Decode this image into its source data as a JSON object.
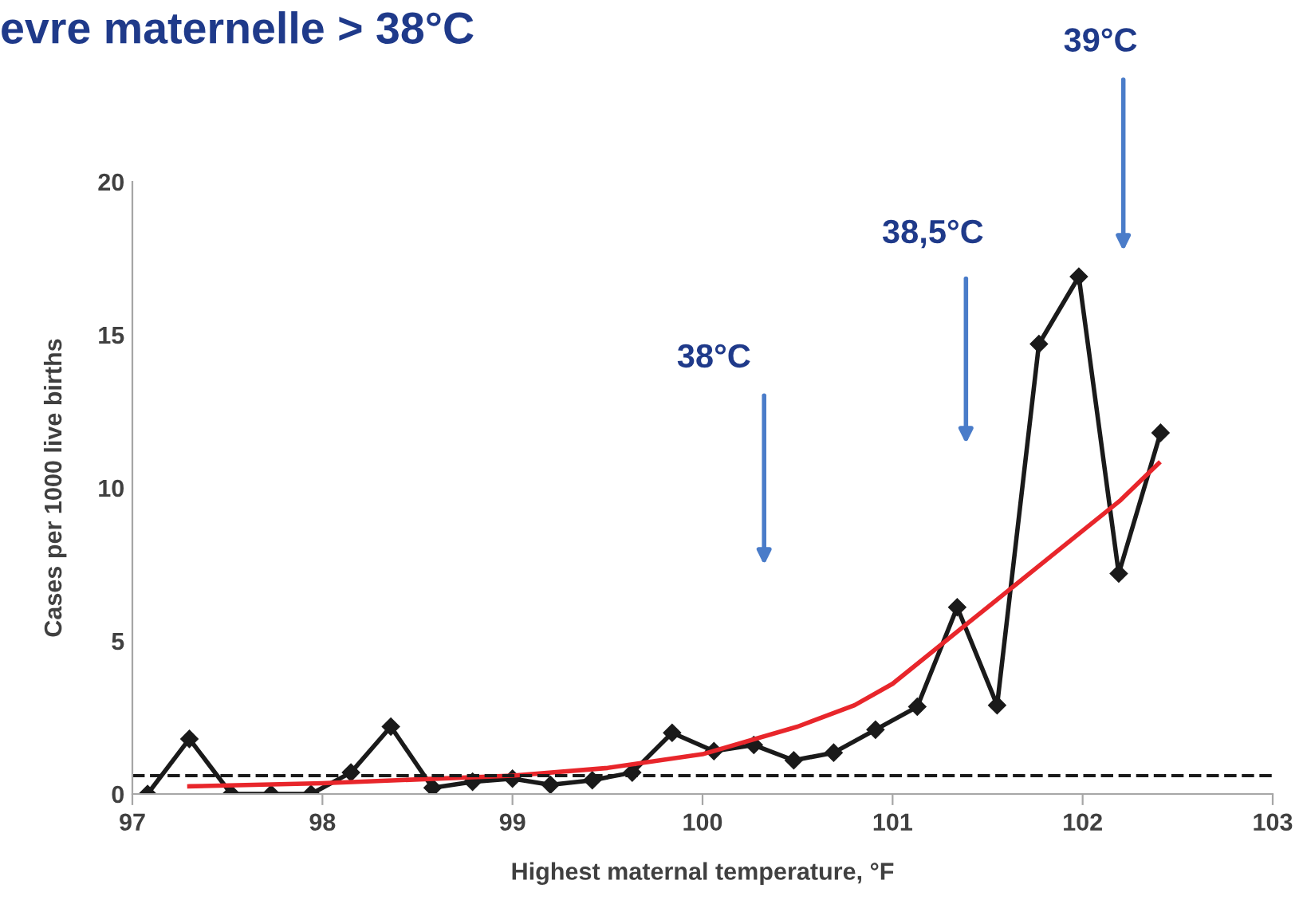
{
  "chart_data": {
    "type": "line",
    "title": "evre maternelle > 38°C",
    "xlabel": "Highest maternal temperature, °F",
    "ylabel": "Cases per 1000 live births",
    "xlim": [
      97,
      103
    ],
    "xticks": [
      97,
      98,
      99,
      100,
      101,
      102,
      103
    ],
    "ylim": [
      0,
      20
    ],
    "yticks": [
      0,
      5,
      10,
      15,
      20
    ],
    "grid": false,
    "legend": false,
    "series": [
      {
        "color": "#1a1a1a",
        "marker": "diamond",
        "line_style": "solid",
        "x": [
          97.08,
          97.3,
          97.52,
          97.73,
          97.94,
          98.15,
          98.36,
          98.58,
          98.79,
          99.0,
          99.2,
          99.42,
          99.63,
          99.84,
          100.06,
          100.27,
          100.48,
          100.69,
          100.91,
          101.13,
          101.34,
          101.55,
          101.77,
          101.98,
          102.19,
          102.41
        ],
        "values": [
          0,
          1.8,
          0,
          0,
          0,
          0.7,
          2.2,
          0.2,
          0.4,
          0.5,
          0.3,
          0.45,
          0.7,
          2.0,
          1.4,
          1.6,
          1.1,
          1.35,
          2.1,
          2.85,
          6.1,
          2.9,
          14.7,
          16.9,
          7.2,
          11.8
        ]
      },
      {
        "color": "#e8262b",
        "marker": "none",
        "line_style": "solid",
        "x": [
          97.3,
          98,
          99,
          99.5,
          100,
          100.5,
          100.8,
          101,
          101.4,
          101.8,
          102.2,
          102.4
        ],
        "values": [
          0.25,
          0.35,
          0.6,
          0.85,
          1.3,
          2.2,
          2.9,
          3.6,
          5.6,
          7.6,
          9.6,
          10.8
        ]
      }
    ],
    "ref_lines": [
      {
        "axis": "y",
        "value": 0.6,
        "color": "#1a1a1a",
        "line_style": "dashed"
      }
    ],
    "annotations": [
      "38°C",
      "38,5°C",
      "39°C"
    ]
  }
}
